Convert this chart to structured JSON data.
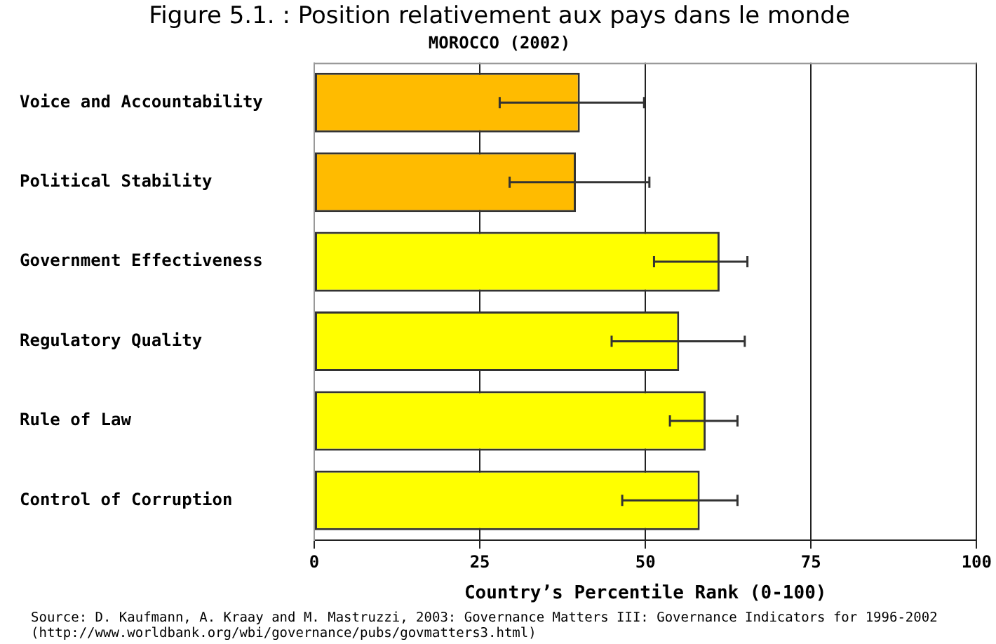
{
  "chart_data": {
    "type": "bar",
    "orientation": "horizontal",
    "title": "Figure 5.1. : Position relativement aux pays dans le monde",
    "subtitle": "MOROCCO (2002)",
    "xlabel": "Country’s Percentile Rank (0-100)",
    "categories": [
      "Voice and Accountability",
      "Political Stability",
      "Government Effectiveness",
      "Regulatory Quality",
      "Rule of Law",
      "Control of Corruption"
    ],
    "values": [
      40.1,
      39.5,
      61.2,
      55.1,
      59.1,
      58.2
    ],
    "colors": [
      "#ffbb00",
      "#ffbb00",
      "#ffff00",
      "#ffff00",
      "#ffff00",
      "#ffff00"
    ],
    "errors": [
      [
        28.0,
        49.8
      ],
      [
        29.5,
        50.6
      ],
      [
        51.3,
        65.4
      ],
      [
        44.9,
        65.0
      ],
      [
        53.7,
        63.9
      ],
      [
        46.5,
        63.9
      ]
    ],
    "xlim": [
      0,
      100
    ],
    "xticks": [
      0,
      25,
      50,
      75,
      100
    ],
    "grid": "x",
    "annotations": [
      "Source: D. Kaufmann, A. Kraay and M. Mastruzzi, 2003: Governance Matters III: Governance Indicators for 1996-2002",
      "(http://www.worldbank.org/wbi/governance/pubs/govmatters3.html)"
    ]
  }
}
